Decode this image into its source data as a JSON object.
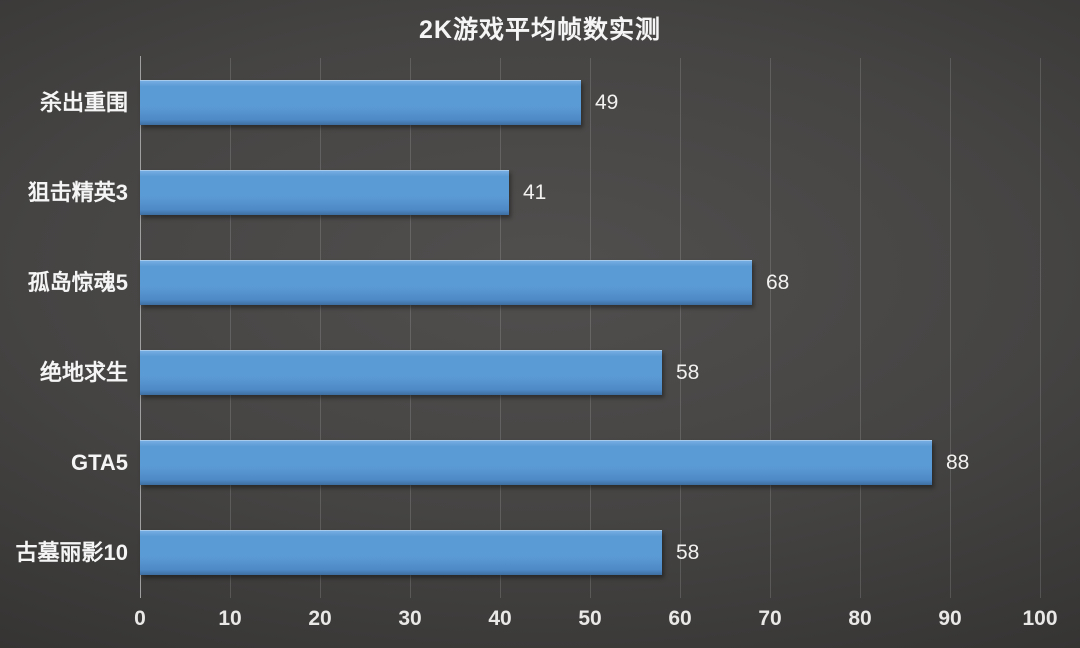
{
  "chart_data": {
    "type": "bar",
    "orientation": "horizontal",
    "title": "2K游戏平均帧数实测",
    "categories": [
      "杀出重围",
      "狙击精英3",
      "孤岛惊魂5",
      "绝地求生",
      "GTA5",
      "古墓丽影10"
    ],
    "values": [
      49,
      41,
      68,
      58,
      88,
      58
    ],
    "xlabel": "",
    "ylabel": "",
    "xlim": [
      0,
      100
    ],
    "xticks": [
      0,
      10,
      20,
      30,
      40,
      50,
      60,
      70,
      80,
      90,
      100
    ],
    "grid": true,
    "legend_position": "none",
    "colors": {
      "bar_top": "#7ab0e4",
      "bar_mid": "#5b9bd5",
      "bar_lower": "#4e8ac6",
      "bar_bottom": "#3f6fa0",
      "background_center": "#514f4e",
      "background_edge": "#272625",
      "gridline": "rgba(255,255,255,0.14)",
      "axis_line": "#9f9f9f",
      "text": "#f2f2f2"
    }
  }
}
